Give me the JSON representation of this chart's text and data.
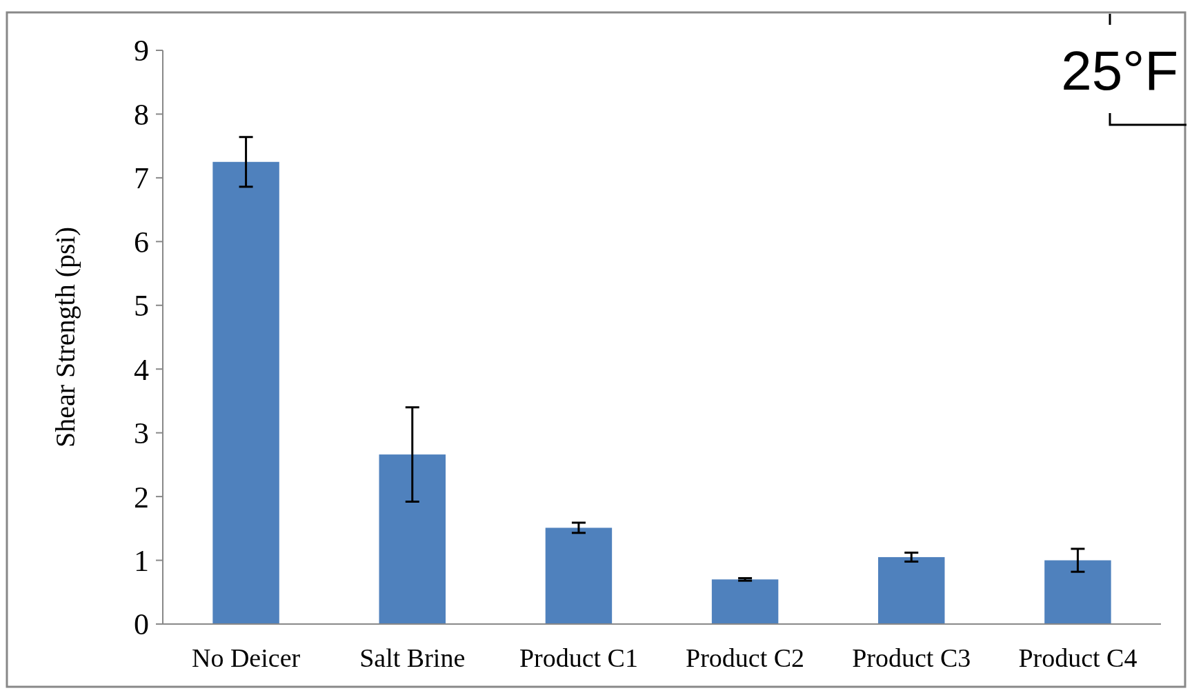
{
  "chart_data": {
    "type": "bar",
    "ylabel": "Shear Strength (psi)",
    "annotations": [
      "25°F"
    ],
    "categories": [
      "No Deicer",
      "Salt Brine",
      "Product C1",
      "Product C2",
      "Product C3",
      "Product C4"
    ],
    "values": [
      7.25,
      2.66,
      1.51,
      0.7,
      1.05,
      1.0
    ],
    "errors": [
      0.39,
      0.74,
      0.08,
      0.02,
      0.07,
      0.18
    ],
    "color": "#4f81bd",
    "ylim": [
      0,
      9
    ],
    "yticks": [
      0,
      1,
      2,
      3,
      4,
      5,
      6,
      7,
      8,
      9
    ],
    "grid": false
  }
}
